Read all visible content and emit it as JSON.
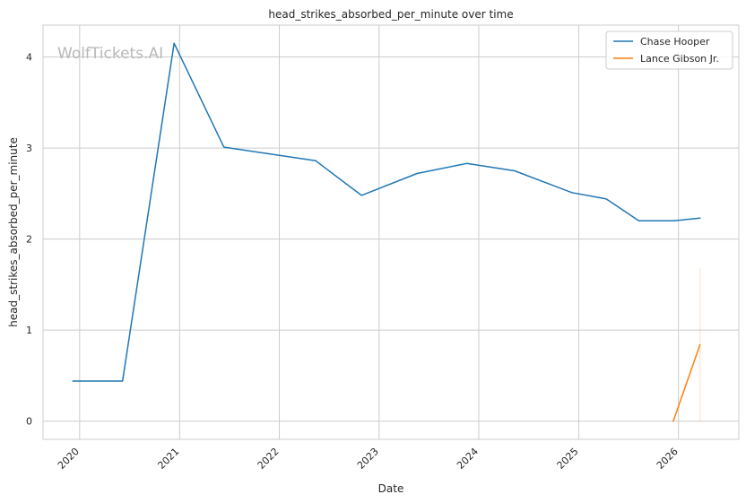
{
  "chart_data": {
    "type": "line",
    "title": "head_strikes_absorbed_per_minute over time",
    "xlabel": "Date",
    "ylabel": "head_strikes_absorbed_per_minute",
    "watermark": "WolfTickets.AI",
    "x_ticks": [
      "2020",
      "2021",
      "2022",
      "2023",
      "2024",
      "2025",
      "2026"
    ],
    "y_ticks": [
      0,
      1,
      2,
      3,
      4
    ],
    "xlim": [
      "2019-08-20",
      "2026-08-10"
    ],
    "ylim": [
      -0.2,
      4.35
    ],
    "grid": true,
    "legend_position": "top-right",
    "series": [
      {
        "name": "Chase Hooper",
        "color": "#1f77b4",
        "points": [
          {
            "x": "2019-12-07",
            "y": 0.44
          },
          {
            "x": "2020-06-06",
            "y": 0.44
          },
          {
            "x": "2020-12-12",
            "y": 4.15
          },
          {
            "x": "2021-06-12",
            "y": 3.01
          },
          {
            "x": "2022-05-14",
            "y": 2.86
          },
          {
            "x": "2022-10-29",
            "y": 2.48
          },
          {
            "x": "2023-05-20",
            "y": 2.72
          },
          {
            "x": "2023-11-18",
            "y": 2.83
          },
          {
            "x": "2024-05-11",
            "y": 2.75
          },
          {
            "x": "2024-12-07",
            "y": 2.51
          },
          {
            "x": "2025-04-12",
            "y": 2.44
          },
          {
            "x": "2025-08-09",
            "y": 2.2
          },
          {
            "x": "2025-12-13",
            "y": 2.2
          },
          {
            "x": "2026-03-21",
            "y": 2.23
          }
        ]
      },
      {
        "name": "Lance Gibson Jr.",
        "color": "#ff7f0e",
        "points": [
          {
            "x": "2025-12-13",
            "y": 0.0
          },
          {
            "x": "2026-03-21",
            "y": 0.84
          }
        ],
        "band": {
          "x": "2026-03-21",
          "y_low": 0.0,
          "y_high": 1.68
        }
      }
    ]
  }
}
